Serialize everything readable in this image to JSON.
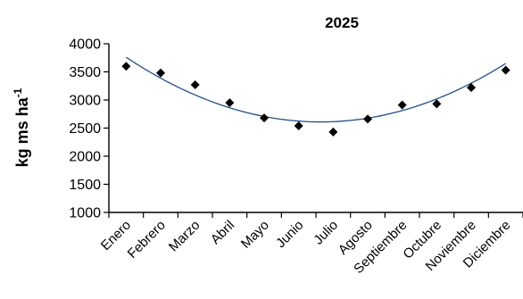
{
  "chart_data": {
    "type": "scatter",
    "title": "2025",
    "ylabel": "kg ms ha",
    "ylabel_superscript": "-1",
    "categories": [
      "Enero",
      "Febrero",
      "Marzo",
      "Abril",
      "Mayo",
      "Junio",
      "Julio",
      "Agosto",
      "Septiembre",
      "Octubre",
      "Noviembre",
      "Diciembre"
    ],
    "ylim": [
      1000,
      4000
    ],
    "yticks": [
      1000,
      1500,
      2000,
      2500,
      3000,
      3500,
      4000
    ],
    "series": [
      {
        "values": [
          3600,
          3480,
          3270,
          2950,
          2680,
          2540,
          2430,
          2660,
          2910,
          2930,
          3220,
          3530
        ],
        "marker": "diamond",
        "color": "#000000"
      }
    ],
    "trendline": {
      "type": "polynomial",
      "order": 2,
      "color": "#234e84",
      "start": 3760,
      "minimum": 2610,
      "end": 3650
    },
    "grid": false,
    "legend": "none"
  }
}
